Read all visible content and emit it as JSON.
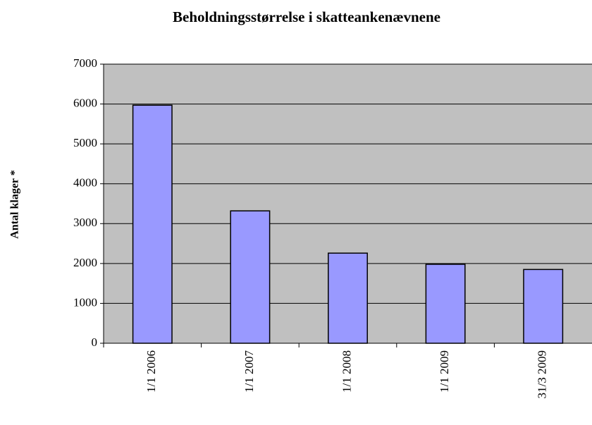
{
  "chart_data": {
    "type": "bar",
    "title": "Beholdningsstørrelse i skatteankenævnene",
    "y_label": "Antal klager *",
    "categories": [
      "1/1 2006",
      "1/1 2007",
      "1/1 2008",
      "1/1 2009",
      "31/3 2009"
    ],
    "values": [
      5970,
      3320,
      2260,
      1980,
      1850
    ],
    "color": "#9999ff",
    "ylim": [
      0,
      7000
    ],
    "yticks": [
      0,
      1000,
      2000,
      3000,
      4000,
      5000,
      6000,
      7000
    ],
    "grid": true
  }
}
